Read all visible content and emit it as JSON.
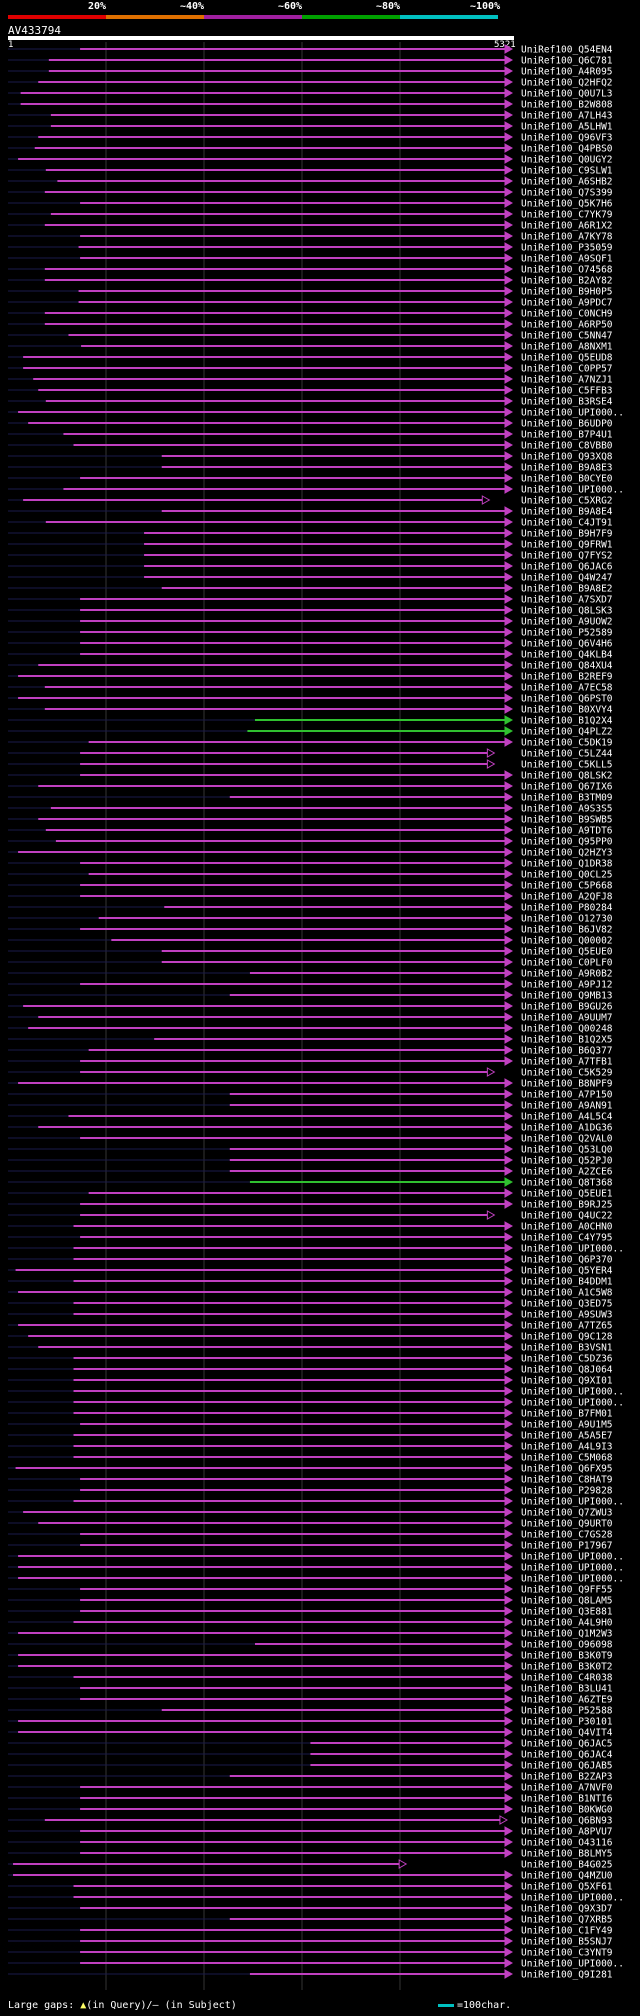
{
  "color_scale": {
    "labels": [
      "20%",
      "~40%",
      "~60%",
      "~80%",
      "~100%"
    ],
    "colors": [
      "#e00000",
      "#e07000",
      "#a020a0",
      "#00a000",
      "#00c0c0"
    ]
  },
  "query": {
    "title": "AV433794",
    "start": "1",
    "end": "5321"
  },
  "hits": [
    {
      "id": "UniRef100_Q54EN4",
      "c": "#c040c0",
      "s": 0.143,
      "e": 1.0
    },
    {
      "id": "UniRef100_Q6C781",
      "c": "#c040c0",
      "s": 0.081,
      "e": 1.0
    },
    {
      "id": "UniRef100_A4R095",
      "c": "#c040c0",
      "s": 0.081,
      "e": 1.0
    },
    {
      "id": "UniRef100_Q2HFQ2",
      "c": "#c040c0",
      "s": 0.06,
      "e": 1.0
    },
    {
      "id": "UniRef100_Q0U7L3",
      "c": "#c040c0",
      "s": 0.025,
      "e": 1.0
    },
    {
      "id": "UniRef100_B2W808",
      "c": "#c040c0",
      "s": 0.025,
      "e": 1.0
    },
    {
      "id": "UniRef100_A7LH43",
      "c": "#c040c0",
      "s": 0.085,
      "e": 1.0
    },
    {
      "id": "UniRef100_A5LHW1",
      "c": "#c040c0",
      "s": 0.085,
      "e": 1.0
    },
    {
      "id": "UniRef100_Q96VF3",
      "c": "#c040c0",
      "s": 0.06,
      "e": 1.0
    },
    {
      "id": "UniRef100_Q4PBS0",
      "c": "#c040c0",
      "s": 0.053,
      "e": 1.0
    },
    {
      "id": "UniRef100_Q0UGY2",
      "c": "#c040c0",
      "s": 0.02,
      "e": 1.0
    },
    {
      "id": "UniRef100_C9SLW1",
      "c": "#c040c0",
      "s": 0.075,
      "e": 1.0
    },
    {
      "id": "UniRef100_A6SHB2",
      "c": "#c040c0",
      "s": 0.098,
      "e": 1.0
    },
    {
      "id": "UniRef100_Q7S399",
      "c": "#c040c0",
      "s": 0.073,
      "e": 1.0
    },
    {
      "id": "UniRef100_Q5K7H6",
      "c": "#c040c0",
      "s": 0.143,
      "e": 1.0
    },
    {
      "id": "UniRef100_C7YK79",
      "c": "#c040c0",
      "s": 0.085,
      "e": 1.0
    },
    {
      "id": "UniRef100_A6R1X2",
      "c": "#c040c0",
      "s": 0.073,
      "e": 1.0
    },
    {
      "id": "UniRef100_A7KY78",
      "c": "#c040c0",
      "s": 0.143,
      "e": 1.0
    },
    {
      "id": "UniRef100_P35059",
      "c": "#c040c0",
      "s": 0.14,
      "e": 1.0
    },
    {
      "id": "UniRef100_A9SQF1",
      "c": "#c040c0",
      "s": 0.143,
      "e": 1.0
    },
    {
      "id": "UniRef100_O74568",
      "c": "#c040c0",
      "s": 0.073,
      "e": 1.0
    },
    {
      "id": "UniRef100_B2AY82",
      "c": "#c040c0",
      "s": 0.073,
      "e": 1.0
    },
    {
      "id": "UniRef100_B9H0P5",
      "c": "#c040c0",
      "s": 0.14,
      "e": 1.0
    },
    {
      "id": "UniRef100_A9PDC7",
      "c": "#c040c0",
      "s": 0.14,
      "e": 1.0
    },
    {
      "id": "UniRef100_C0NCH9",
      "c": "#c040c0",
      "s": 0.073,
      "e": 1.0
    },
    {
      "id": "UniRef100_A6RP50",
      "c": "#c040c0",
      "s": 0.073,
      "e": 1.0
    },
    {
      "id": "UniRef100_C5NN47",
      "c": "#c040c0",
      "s": 0.12,
      "e": 1.0
    },
    {
      "id": "UniRef100_A8NXM1",
      "c": "#c040c0",
      "s": 0.145,
      "e": 1.0
    },
    {
      "id": "UniRef100_Q5EUD8",
      "c": "#c040c0",
      "s": 0.03,
      "e": 1.0
    },
    {
      "id": "UniRef100_C0PP57",
      "c": "#c040c0",
      "s": 0.03,
      "e": 1.0
    },
    {
      "id": "UniRef100_A7NZJ1",
      "c": "#c040c0",
      "s": 0.05,
      "e": 1.0
    },
    {
      "id": "UniRef100_C5FFB3",
      "c": "#c040c0",
      "s": 0.06,
      "e": 1.0
    },
    {
      "id": "UniRef100_B3RSE4",
      "c": "#c040c0",
      "s": 0.075,
      "e": 1.0
    },
    {
      "id": "UniRef100_UPI000..",
      "c": "#c040c0",
      "s": 0.02,
      "e": 1.0
    },
    {
      "id": "UniRef100_B6UDP0",
      "c": "#c040c0",
      "s": 0.04,
      "e": 1.0
    },
    {
      "id": "UniRef100_B7P4U1",
      "c": "#c040c0",
      "s": 0.11,
      "e": 1.0
    },
    {
      "id": "UniRef100_C8VBB0",
      "c": "#c040c0",
      "s": 0.13,
      "e": 1.0
    },
    {
      "id": "UniRef100_Q93XQ8",
      "c": "#c040c0",
      "s": 0.305,
      "e": 1.0
    },
    {
      "id": "UniRef100_B9A8E3",
      "c": "#c040c0",
      "s": 0.305,
      "e": 1.0
    },
    {
      "id": "UniRef100_B0CYE0",
      "c": "#c040c0",
      "s": 0.143,
      "e": 1.0
    },
    {
      "id": "UniRef100_UPI000..",
      "c": "#c040c0",
      "s": 0.11,
      "e": 1.0
    },
    {
      "id": "UniRef100_C5XRG2",
      "c": "#c040c0",
      "s": 0.03,
      "e": 0.955
    },
    {
      "id": "UniRef100_B9A8E4",
      "c": "#c040c0",
      "s": 0.305,
      "e": 1.0
    },
    {
      "id": "UniRef100_C4JT91",
      "c": "#c040c0",
      "s": 0.075,
      "e": 1.0
    },
    {
      "id": "UniRef100_B9H7F9",
      "c": "#c040c0",
      "s": 0.27,
      "e": 1.0
    },
    {
      "id": "UniRef100_Q9FRW1",
      "c": "#c040c0",
      "s": 0.27,
      "e": 1.0
    },
    {
      "id": "UniRef100_Q7FYS2",
      "c": "#c040c0",
      "s": 0.27,
      "e": 1.0
    },
    {
      "id": "UniRef100_Q6JAC6",
      "c": "#c040c0",
      "s": 0.27,
      "e": 1.0
    },
    {
      "id": "UniRef100_Q4W247",
      "c": "#c040c0",
      "s": 0.27,
      "e": 1.0
    },
    {
      "id": "UniRef100_B9A8E2",
      "c": "#c040c0",
      "s": 0.305,
      "e": 1.0
    },
    {
      "id": "UniRef100_A7SXD7",
      "c": "#c040c0",
      "s": 0.143,
      "e": 1.0
    },
    {
      "id": "UniRef100_Q8LSK3",
      "c": "#c040c0",
      "s": 0.143,
      "e": 1.0
    },
    {
      "id": "UniRef100_A9UOW2",
      "c": "#c040c0",
      "s": 0.143,
      "e": 1.0
    },
    {
      "id": "UniRef100_P52589",
      "c": "#c040c0",
      "s": 0.143,
      "e": 1.0
    },
    {
      "id": "UniRef100_Q6V4H6",
      "c": "#c040c0",
      "s": 0.143,
      "e": 1.0
    },
    {
      "id": "UniRef100_Q4KLB4",
      "c": "#c040c0",
      "s": 0.143,
      "e": 1.0
    },
    {
      "id": "UniRef100_Q84XU4",
      "c": "#c040c0",
      "s": 0.06,
      "e": 1.0
    },
    {
      "id": "UniRef100_B2REF9",
      "c": "#c040c0",
      "s": 0.02,
      "e": 1.0
    },
    {
      "id": "UniRef100_A7EC58",
      "c": "#c040c0",
      "s": 0.073,
      "e": 1.0
    },
    {
      "id": "UniRef100_Q6PST0",
      "c": "#c040c0",
      "s": 0.02,
      "e": 1.0
    },
    {
      "id": "UniRef100_B0XVY4",
      "c": "#c040c0",
      "s": 0.073,
      "e": 1.0
    },
    {
      "id": "UniRef100_B1Q2X4",
      "c": "#30c030",
      "s": 0.49,
      "e": 1.0
    },
    {
      "id": "UniRef100_Q4PLZ2",
      "c": "#30c030",
      "s": 0.475,
      "e": 1.0
    },
    {
      "id": "UniRef100_C5DK19",
      "c": "#c040c0",
      "s": 0.16,
      "e": 1.0
    },
    {
      "id": "UniRef100_C5LZ44",
      "c": "#c040c0",
      "s": 0.143,
      "e": 0.965
    },
    {
      "id": "UniRef100_C5KLL5",
      "c": "#c040c0",
      "s": 0.143,
      "e": 0.965
    },
    {
      "id": "UniRef100_Q8LSK2",
      "c": "#c040c0",
      "s": 0.143,
      "e": 1.0
    },
    {
      "id": "UniRef100_Q67IX6",
      "c": "#c040c0",
      "s": 0.06,
      "e": 1.0
    },
    {
      "id": "UniRef100_B3TM09",
      "c": "#c040c0",
      "s": 0.44,
      "e": 1.0
    },
    {
      "id": "UniRef100_A9S3S5",
      "c": "#c040c0",
      "s": 0.085,
      "e": 1.0
    },
    {
      "id": "UniRef100_B9SWB5",
      "c": "#c040c0",
      "s": 0.06,
      "e": 1.0
    },
    {
      "id": "UniRef100_A9TDT6",
      "c": "#c040c0",
      "s": 0.075,
      "e": 1.0
    },
    {
      "id": "UniRef100_Q95PP0",
      "c": "#c040c0",
      "s": 0.095,
      "e": 1.0
    },
    {
      "id": "UniRef100_Q2HZY3",
      "c": "#c040c0",
      "s": 0.02,
      "e": 1.0
    },
    {
      "id": "UniRef100_Q1DR38",
      "c": "#c040c0",
      "s": 0.143,
      "e": 1.0
    },
    {
      "id": "UniRef100_Q0CL25",
      "c": "#c040c0",
      "s": 0.16,
      "e": 1.0
    },
    {
      "id": "UniRef100_C5P668",
      "c": "#c040c0",
      "s": 0.143,
      "e": 1.0
    },
    {
      "id": "UniRef100_A2QFJ8",
      "c": "#c040c0",
      "s": 0.143,
      "e": 1.0
    },
    {
      "id": "UniRef100_P80284",
      "c": "#c040c0",
      "s": 0.31,
      "e": 1.0
    },
    {
      "id": "UniRef100_O12730",
      "c": "#c040c0",
      "s": 0.18,
      "e": 1.0
    },
    {
      "id": "UniRef100_B6JV82",
      "c": "#c040c0",
      "s": 0.143,
      "e": 1.0
    },
    {
      "id": "UniRef100_Q00002",
      "c": "#c040c0",
      "s": 0.205,
      "e": 1.0
    },
    {
      "id": "UniRef100_Q5EUE0",
      "c": "#c040c0",
      "s": 0.305,
      "e": 1.0
    },
    {
      "id": "UniRef100_C0PLF0",
      "c": "#c040c0",
      "s": 0.305,
      "e": 1.0
    },
    {
      "id": "UniRef100_A9R0B2",
      "c": "#c040c0",
      "s": 0.48,
      "e": 1.0
    },
    {
      "id": "UniRef100_A9PJ12",
      "c": "#c040c0",
      "s": 0.143,
      "e": 1.0
    },
    {
      "id": "UniRef100_Q9MB13",
      "c": "#c040c0",
      "s": 0.44,
      "e": 1.0
    },
    {
      "id": "UniRef100_B9GU26",
      "c": "#c040c0",
      "s": 0.03,
      "e": 1.0
    },
    {
      "id": "UniRef100_A9UUM7",
      "c": "#c040c0",
      "s": 0.06,
      "e": 1.0
    },
    {
      "id": "UniRef100_Q00248",
      "c": "#c040c0",
      "s": 0.04,
      "e": 1.0
    },
    {
      "id": "UniRef100_B1Q2X5",
      "c": "#c040c0",
      "s": 0.29,
      "e": 1.0
    },
    {
      "id": "UniRef100_B6Q377",
      "c": "#c040c0",
      "s": 0.16,
      "e": 1.0
    },
    {
      "id": "UniRef100_A7TFB1",
      "c": "#c040c0",
      "s": 0.143,
      "e": 1.0
    },
    {
      "id": "UniRef100_C5K529",
      "c": "#c040c0",
      "s": 0.143,
      "e": 0.965
    },
    {
      "id": "UniRef100_B8NPF9",
      "c": "#c040c0",
      "s": 0.02,
      "e": 1.0
    },
    {
      "id": "UniRef100_A7P150",
      "c": "#c040c0",
      "s": 0.44,
      "e": 1.0
    },
    {
      "id": "UniRef100_A9AN91",
      "c": "#c040c0",
      "s": 0.44,
      "e": 1.0
    },
    {
      "id": "UniRef100_A4L5C4",
      "c": "#c040c0",
      "s": 0.12,
      "e": 1.0
    },
    {
      "id": "UniRef100_A1DG36",
      "c": "#c040c0",
      "s": 0.06,
      "e": 1.0
    },
    {
      "id": "UniRef100_Q2VAL0",
      "c": "#c040c0",
      "s": 0.143,
      "e": 1.0
    },
    {
      "id": "UniRef100_Q53LQ0",
      "c": "#c040c0",
      "s": 0.44,
      "e": 1.0
    },
    {
      "id": "UniRef100_Q52PJ0",
      "c": "#c040c0",
      "s": 0.44,
      "e": 1.0
    },
    {
      "id": "UniRef100_A2ZCE6",
      "c": "#c040c0",
      "s": 0.44,
      "e": 1.0
    },
    {
      "id": "UniRef100_Q8T368",
      "c": "#30c030",
      "s": 0.48,
      "e": 1.0
    },
    {
      "id": "UniRef100_Q5EUE1",
      "c": "#c040c0",
      "s": 0.16,
      "e": 1.0
    },
    {
      "id": "UniRef100_B9RJ25",
      "c": "#c040c0",
      "s": 0.143,
      "e": 1.0
    },
    {
      "id": "UniRef100_Q4UC22",
      "c": "#c040c0",
      "s": 0.143,
      "e": 0.965
    },
    {
      "id": "UniRef100_A0CHN0",
      "c": "#c040c0",
      "s": 0.13,
      "e": 1.0
    },
    {
      "id": "UniRef100_C4Y795",
      "c": "#c040c0",
      "s": 0.143,
      "e": 1.0
    },
    {
      "id": "UniRef100_UPI000..",
      "c": "#c040c0",
      "s": 0.13,
      "e": 1.0
    },
    {
      "id": "UniRef100_Q6P370",
      "c": "#c040c0",
      "s": 0.13,
      "e": 1.0
    },
    {
      "id": "UniRef100_Q5YER4",
      "c": "#c040c0",
      "s": 0.015,
      "e": 1.0
    },
    {
      "id": "UniRef100_B4DDM1",
      "c": "#c040c0",
      "s": 0.13,
      "e": 1.0
    },
    {
      "id": "UniRef100_A1C5W8",
      "c": "#c040c0",
      "s": 0.02,
      "e": 1.0
    },
    {
      "id": "UniRef100_Q3ED75",
      "c": "#c040c0",
      "s": 0.13,
      "e": 1.0
    },
    {
      "id": "UniRef100_A9SUW3",
      "c": "#c040c0",
      "s": 0.13,
      "e": 1.0
    },
    {
      "id": "UniRef100_A7TZ65",
      "c": "#c040c0",
      "s": 0.02,
      "e": 1.0
    },
    {
      "id": "UniRef100_Q9C128",
      "c": "#c040c0",
      "s": 0.04,
      "e": 1.0
    },
    {
      "id": "UniRef100_B3VSN1",
      "c": "#c040c0",
      "s": 0.06,
      "e": 1.0
    },
    {
      "id": "UniRef100_C5DZ36",
      "c": "#c040c0",
      "s": 0.13,
      "e": 1.0
    },
    {
      "id": "UniRef100_Q8J064",
      "c": "#c040c0",
      "s": 0.13,
      "e": 1.0
    },
    {
      "id": "UniRef100_Q9XI01",
      "c": "#c040c0",
      "s": 0.13,
      "e": 1.0
    },
    {
      "id": "UniRef100_UPI000..",
      "c": "#c040c0",
      "s": 0.13,
      "e": 1.0
    },
    {
      "id": "UniRef100_UPI000..",
      "c": "#c040c0",
      "s": 0.13,
      "e": 1.0
    },
    {
      "id": "UniRef100_B7FM01",
      "c": "#c040c0",
      "s": 0.13,
      "e": 1.0
    },
    {
      "id": "UniRef100_A9U1M5",
      "c": "#c040c0",
      "s": 0.143,
      "e": 1.0
    },
    {
      "id": "UniRef100_A5A5E7",
      "c": "#c040c0",
      "s": 0.13,
      "e": 1.0
    },
    {
      "id": "UniRef100_A4L9I3",
      "c": "#c040c0",
      "s": 0.13,
      "e": 1.0
    },
    {
      "id": "UniRef100_C5M068",
      "c": "#c040c0",
      "s": 0.13,
      "e": 1.0
    },
    {
      "id": "UniRef100_Q6FX95",
      "c": "#c040c0",
      "s": 0.015,
      "e": 1.0
    },
    {
      "id": "UniRef100_C8HAT9",
      "c": "#c040c0",
      "s": 0.143,
      "e": 1.0
    },
    {
      "id": "UniRef100_P29828",
      "c": "#c040c0",
      "s": 0.143,
      "e": 1.0
    },
    {
      "id": "UniRef100_UPI000..",
      "c": "#c040c0",
      "s": 0.13,
      "e": 1.0
    },
    {
      "id": "UniRef100_Q7ZWU3",
      "c": "#c040c0",
      "s": 0.03,
      "e": 1.0
    },
    {
      "id": "UniRef100_Q9URT0",
      "c": "#c040c0",
      "s": 0.06,
      "e": 1.0
    },
    {
      "id": "UniRef100_C7GS28",
      "c": "#c040c0",
      "s": 0.143,
      "e": 1.0
    },
    {
      "id": "UniRef100_P17967",
      "c": "#c040c0",
      "s": 0.143,
      "e": 1.0
    },
    {
      "id": "UniRef100_UPI000..",
      "c": "#c040c0",
      "s": 0.02,
      "e": 1.0
    },
    {
      "id": "UniRef100_UPI000..",
      "c": "#c040c0",
      "s": 0.02,
      "e": 1.0
    },
    {
      "id": "UniRef100_UPI000..",
      "c": "#c040c0",
      "s": 0.02,
      "e": 1.0
    },
    {
      "id": "UniRef100_Q9FF55",
      "c": "#c040c0",
      "s": 0.143,
      "e": 1.0
    },
    {
      "id": "UniRef100_Q8LAM5",
      "c": "#c040c0",
      "s": 0.143,
      "e": 1.0
    },
    {
      "id": "UniRef100_Q3E881",
      "c": "#c040c0",
      "s": 0.143,
      "e": 1.0
    },
    {
      "id": "UniRef100_A4L9H0",
      "c": "#c040c0",
      "s": 0.13,
      "e": 1.0
    },
    {
      "id": "UniRef100_Q1M2W3",
      "c": "#c040c0",
      "s": 0.02,
      "e": 1.0
    },
    {
      "id": "UniRef100_O96098",
      "c": "#c040c0",
      "s": 0.49,
      "e": 1.0
    },
    {
      "id": "UniRef100_B3K0T9",
      "c": "#c040c0",
      "s": 0.02,
      "e": 1.0
    },
    {
      "id": "UniRef100_B3K0T2",
      "c": "#c040c0",
      "s": 0.02,
      "e": 1.0
    },
    {
      "id": "UniRef100_C4R038",
      "c": "#c040c0",
      "s": 0.13,
      "e": 1.0
    },
    {
      "id": "UniRef100_B3LU41",
      "c": "#c040c0",
      "s": 0.143,
      "e": 1.0
    },
    {
      "id": "UniRef100_A6ZTE9",
      "c": "#c040c0",
      "s": 0.143,
      "e": 1.0
    },
    {
      "id": "UniRef100_P52588",
      "c": "#c040c0",
      "s": 0.305,
      "e": 1.0
    },
    {
      "id": "UniRef100_P30101",
      "c": "#c040c0",
      "s": 0.02,
      "e": 1.0
    },
    {
      "id": "UniRef100_Q4VIT4",
      "c": "#c040c0",
      "s": 0.02,
      "e": 1.0
    },
    {
      "id": "UniRef100_Q6JAC5",
      "c": "#c040c0",
      "s": 0.6,
      "e": 1.0
    },
    {
      "id": "UniRef100_Q6JAC4",
      "c": "#c040c0",
      "s": 0.6,
      "e": 1.0
    },
    {
      "id": "UniRef100_Q6JAB5",
      "c": "#c040c0",
      "s": 0.6,
      "e": 1.0
    },
    {
      "id": "UniRef100_B2ZAP3",
      "c": "#c040c0",
      "s": 0.44,
      "e": 1.0
    },
    {
      "id": "UniRef100_A7NVF0",
      "c": "#c040c0",
      "s": 0.143,
      "e": 1.0
    },
    {
      "id": "UniRef100_B1NTI6",
      "c": "#c040c0",
      "s": 0.143,
      "e": 1.0
    },
    {
      "id": "UniRef100_B0KWG0",
      "c": "#c040c0",
      "s": 0.143,
      "e": 1.0
    },
    {
      "id": "UniRef100_Q6BN93",
      "c": "#c040c0",
      "s": 0.073,
      "e": 0.99
    },
    {
      "id": "UniRef100_A8PVU7",
      "c": "#c040c0",
      "s": 0.143,
      "e": 1.0
    },
    {
      "id": "UniRef100_O43116",
      "c": "#c040c0",
      "s": 0.143,
      "e": 1.0
    },
    {
      "id": "UniRef100_B8LMY5",
      "c": "#c040c0",
      "s": 0.143,
      "e": 1.0
    },
    {
      "id": "UniRef100_B4G025",
      "c": "#c040c0",
      "s": 0.01,
      "e": 0.79
    },
    {
      "id": "UniRef100_Q4MZU0",
      "c": "#c040c0",
      "s": 0.01,
      "e": 1.0
    },
    {
      "id": "UniRef100_Q5XF61",
      "c": "#c040c0",
      "s": 0.13,
      "e": 1.0
    },
    {
      "id": "UniRef100_UPI000..",
      "c": "#c040c0",
      "s": 0.13,
      "e": 1.0
    },
    {
      "id": "UniRef100_Q9X3D7",
      "c": "#c040c0",
      "s": 0.143,
      "e": 1.0
    },
    {
      "id": "UniRef100_Q7XRB5",
      "c": "#c040c0",
      "s": 0.44,
      "e": 1.0
    },
    {
      "id": "UniRef100_C1FY49",
      "c": "#c040c0",
      "s": 0.143,
      "e": 1.0
    },
    {
      "id": "UniRef100_B5SNJ7",
      "c": "#c040c0",
      "s": 0.143,
      "e": 1.0
    },
    {
      "id": "UniRef100_C3YNT9",
      "c": "#c040c0",
      "s": 0.143,
      "e": 1.0
    },
    {
      "id": "UniRef100_UPI000..",
      "c": "#c040c0",
      "s": 0.143,
      "e": 1.0
    },
    {
      "id": "UniRef100_Q9I281",
      "c": "#c040c0",
      "s": 0.48,
      "e": 1.0
    }
  ],
  "legend": {
    "large_gaps_prefix": "Large gaps:",
    "large_gaps_triangle": "▲",
    "large_gaps_suffix": "(in Query)/– (in Subject)",
    "scale_note": "=100char."
  }
}
